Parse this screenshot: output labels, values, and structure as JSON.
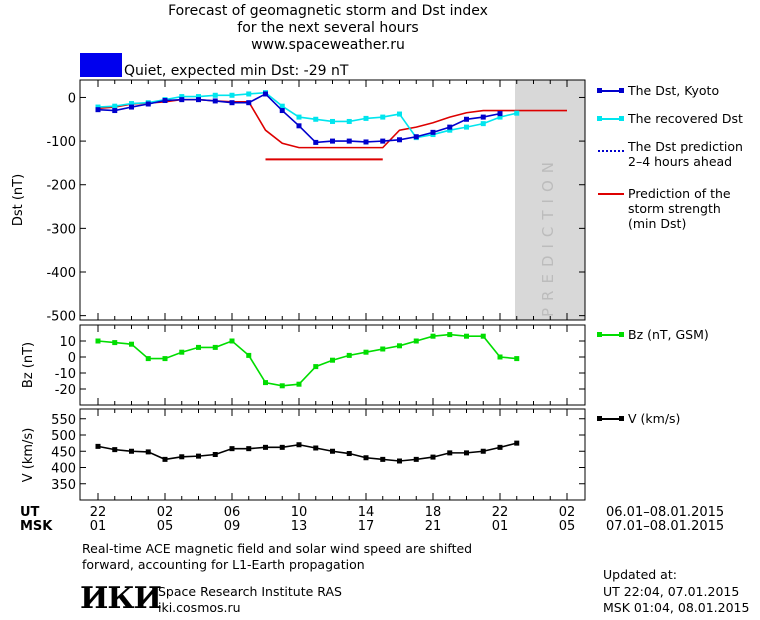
{
  "header": {
    "title_line1": "Forecast of geomagnetic storm and Dst index",
    "title_line2": "for the next several hours",
    "title_line3": "www.spaceweather.ru",
    "status_text": "Quiet, expected min Dst: -29 nT",
    "status_color": "#0000ee"
  },
  "colors": {
    "dst_kyoto": "#0000cc",
    "dst_recovered": "#00e5ee",
    "dst_prediction": "#0000cc",
    "storm_prediction": "#dd0000",
    "bz": "#00dd00",
    "speed": "#000000",
    "prediction_band": "#d8d8d8"
  },
  "legend": {
    "dst_kyoto": "The Dst, Kyoto",
    "dst_recovered": "The recovered Dst",
    "dst_prediction_1": "The Dst prediction",
    "dst_prediction_2": "2–4 hours ahead",
    "storm_1": "Prediction of the",
    "storm_2": "storm strength",
    "storm_3": "(min Dst)",
    "bz": "Bz (nT, GSM)",
    "speed": "V (km/s)"
  },
  "time_axis": {
    "ut_label": "UT",
    "msk_label": "MSK",
    "ut_ticks": [
      "22",
      "02",
      "06",
      "10",
      "14",
      "18",
      "22",
      "02"
    ],
    "msk_ticks": [
      "01",
      "05",
      "09",
      "13",
      "17",
      "21",
      "01",
      "05"
    ],
    "ut_range": "06.01–08.01.2015",
    "msk_range": "07.01–08.01.2015"
  },
  "prediction_label": "PREDICTION",
  "footer": {
    "note_line1": "Real-time ACE magnetic field and solar wind speed are shifted",
    "note_line2": "forward, accounting for L1-Earth propagation",
    "logo_text": "ИКИ",
    "institute": "Space Research Institute RAS",
    "website": "iki.cosmos.ru",
    "updated_label": "Updated at:",
    "updated_ut": "UT   22:04, 07.01.2015",
    "updated_msk": "MSK 01:04, 08.01.2015"
  },
  "chart_data": [
    {
      "type": "line",
      "ylabel": "Dst (nT)",
      "ylim": [
        -510,
        40
      ],
      "yticks": [
        0,
        -100,
        -200,
        -300,
        -400,
        -500
      ],
      "xlim": [
        0,
        28
      ],
      "prediction_start": 24,
      "series": [
        {
          "name": "The Dst, Kyoto",
          "x": [
            0,
            1,
            2,
            3,
            4,
            5,
            6,
            7,
            8,
            9,
            10,
            11,
            12,
            13,
            14,
            15,
            16,
            17,
            18,
            19,
            20,
            21,
            22,
            23,
            24
          ],
          "values": [
            -28,
            -30,
            -22,
            -15,
            -7,
            -5,
            -5,
            -8,
            -12,
            -12,
            8,
            -30,
            -65,
            -103,
            -100,
            -100,
            -102,
            -100,
            -97,
            -90,
            -80,
            -68,
            -50,
            -45,
            -37
          ]
        },
        {
          "name": "The recovered Dst",
          "x": [
            0,
            1,
            2,
            3,
            4,
            5,
            6,
            7,
            8,
            9,
            10,
            11,
            12,
            13,
            14,
            15,
            16,
            17,
            18,
            19,
            20,
            21,
            22,
            23,
            24,
            25
          ],
          "values": [
            -22,
            -20,
            -14,
            -12,
            -5,
            2,
            2,
            5,
            5,
            8,
            11,
            -20,
            -45,
            -50,
            -55,
            -55,
            -48,
            -45,
            -38,
            -92,
            -85,
            -75,
            -68,
            -60,
            -45,
            -36
          ]
        },
        {
          "name": "Prediction of the storm strength (min Dst)",
          "x": [
            0,
            1,
            2,
            3,
            4,
            5,
            6,
            7,
            8,
            9,
            10,
            11,
            12,
            13,
            14,
            15,
            16,
            17,
            18,
            19,
            20,
            21,
            22,
            23,
            24,
            25,
            26,
            27,
            28
          ],
          "values": [
            -25,
            -22,
            -15,
            -13,
            -10,
            -5,
            -5,
            -8,
            -10,
            -10,
            -75,
            -105,
            -115,
            -115,
            -115,
            -115,
            -115,
            -115,
            -75,
            -68,
            -58,
            -45,
            -35,
            -30,
            -30,
            -30,
            -30,
            -30,
            -30
          ]
        }
      ],
      "storm_level": {
        "value": -142,
        "x_start": 10,
        "x_end": 17
      }
    },
    {
      "type": "line",
      "ylabel": "Bz (nT)",
      "ylim": [
        -30,
        20
      ],
      "yticks": [
        10,
        0,
        -10,
        -20
      ],
      "series": [
        {
          "name": "Bz (nT, GSM)",
          "x": [
            0,
            1,
            2,
            3,
            4,
            5,
            6,
            7,
            8,
            9,
            10,
            11,
            12,
            13,
            14,
            15,
            16,
            17,
            18,
            19,
            20,
            21,
            22,
            23,
            24,
            25
          ],
          "values": [
            10,
            9,
            8,
            -1,
            -1,
            3,
            6,
            6,
            10,
            1,
            -16,
            -18,
            -17,
            -6,
            -2,
            1,
            3,
            5,
            7,
            10,
            13,
            14,
            13,
            13,
            0,
            -1
          ]
        }
      ]
    },
    {
      "type": "line",
      "ylabel": "V (km/s)",
      "ylim": [
        300,
        580
      ],
      "yticks": [
        550,
        500,
        450,
        400,
        350
      ],
      "series": [
        {
          "name": "V (km/s)",
          "x": [
            0,
            1,
            2,
            3,
            4,
            5,
            6,
            7,
            8,
            9,
            10,
            11,
            12,
            13,
            14,
            15,
            16,
            17,
            18,
            19,
            20,
            21,
            22,
            23,
            24,
            25
          ],
          "values": [
            465,
            455,
            450,
            448,
            425,
            433,
            435,
            440,
            458,
            458,
            462,
            462,
            470,
            460,
            450,
            443,
            430,
            425,
            420,
            425,
            432,
            445,
            445,
            450,
            462,
            475
          ]
        }
      ]
    }
  ]
}
